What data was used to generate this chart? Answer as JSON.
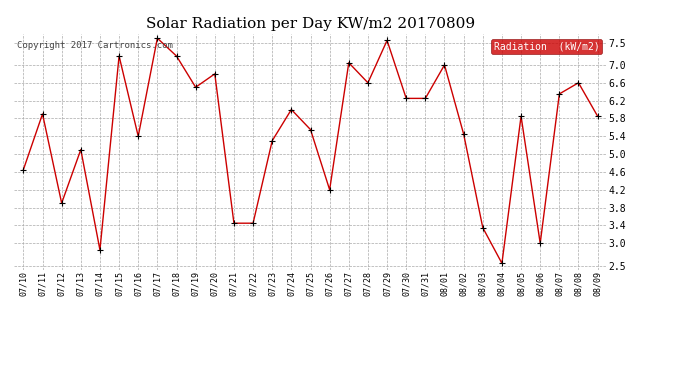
{
  "title": "Solar Radiation per Day KW/m2 20170809",
  "copyright_text": "Copyright 2017 Cartronics.com",
  "legend_label": "Radiation  (kW/m2)",
  "dates": [
    "07/10",
    "07/11",
    "07/12",
    "07/13",
    "07/14",
    "07/15",
    "07/16",
    "07/17",
    "07/18",
    "07/19",
    "07/20",
    "07/21",
    "07/22",
    "07/23",
    "07/24",
    "07/25",
    "07/26",
    "07/27",
    "07/28",
    "07/29",
    "07/30",
    "07/31",
    "08/01",
    "08/02",
    "08/03",
    "08/04",
    "08/05",
    "08/06",
    "08/07",
    "08/08",
    "08/09"
  ],
  "values": [
    4.65,
    5.9,
    3.9,
    5.1,
    2.85,
    7.2,
    5.4,
    7.6,
    7.2,
    6.5,
    6.8,
    3.45,
    3.45,
    5.3,
    6.0,
    5.55,
    4.2,
    7.05,
    6.6,
    7.55,
    6.25,
    6.25,
    7.0,
    5.45,
    3.35,
    2.55,
    5.85,
    3.0,
    6.35,
    6.6,
    5.85
  ],
  "ylim": [
    2.4,
    7.7
  ],
  "yticks": [
    2.5,
    3.0,
    3.4,
    3.8,
    4.2,
    4.6,
    5.0,
    5.4,
    5.8,
    6.2,
    6.6,
    7.0,
    7.5
  ],
  "line_color": "#cc0000",
  "marker_color": "#000000",
  "bg_color": "#ffffff",
  "grid_color": "#aaaaaa",
  "title_fontsize": 11,
  "copyright_fontsize": 6.5,
  "legend_bg": "#cc0000",
  "legend_text_color": "#ffffff"
}
